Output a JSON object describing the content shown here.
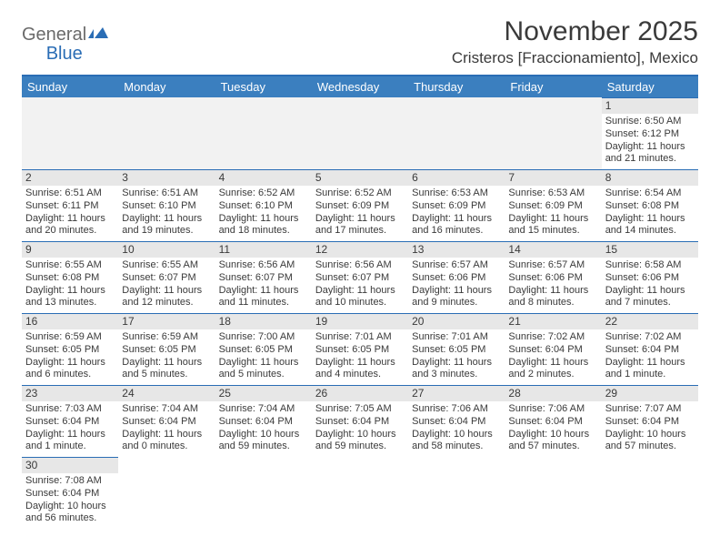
{
  "logo": {
    "word1": "General",
    "word2": "Blue"
  },
  "title": "November 2025",
  "location": "Cristeros [Fraccionamiento], Mexico",
  "colors": {
    "header_bg": "#3b7fbf",
    "header_border": "#2a6db5",
    "daynum_bg": "#e7e7e7",
    "text": "#3a3a3a"
  },
  "dow": [
    "Sunday",
    "Monday",
    "Tuesday",
    "Wednesday",
    "Thursday",
    "Friday",
    "Saturday"
  ],
  "weeks": [
    [
      null,
      null,
      null,
      null,
      null,
      null,
      {
        "n": "1",
        "sunrise": "Sunrise: 6:50 AM",
        "sunset": "Sunset: 6:12 PM",
        "daylight": "Daylight: 11 hours and 21 minutes."
      }
    ],
    [
      {
        "n": "2",
        "sunrise": "Sunrise: 6:51 AM",
        "sunset": "Sunset: 6:11 PM",
        "daylight": "Daylight: 11 hours and 20 minutes."
      },
      {
        "n": "3",
        "sunrise": "Sunrise: 6:51 AM",
        "sunset": "Sunset: 6:10 PM",
        "daylight": "Daylight: 11 hours and 19 minutes."
      },
      {
        "n": "4",
        "sunrise": "Sunrise: 6:52 AM",
        "sunset": "Sunset: 6:10 PM",
        "daylight": "Daylight: 11 hours and 18 minutes."
      },
      {
        "n": "5",
        "sunrise": "Sunrise: 6:52 AM",
        "sunset": "Sunset: 6:09 PM",
        "daylight": "Daylight: 11 hours and 17 minutes."
      },
      {
        "n": "6",
        "sunrise": "Sunrise: 6:53 AM",
        "sunset": "Sunset: 6:09 PM",
        "daylight": "Daylight: 11 hours and 16 minutes."
      },
      {
        "n": "7",
        "sunrise": "Sunrise: 6:53 AM",
        "sunset": "Sunset: 6:09 PM",
        "daylight": "Daylight: 11 hours and 15 minutes."
      },
      {
        "n": "8",
        "sunrise": "Sunrise: 6:54 AM",
        "sunset": "Sunset: 6:08 PM",
        "daylight": "Daylight: 11 hours and 14 minutes."
      }
    ],
    [
      {
        "n": "9",
        "sunrise": "Sunrise: 6:55 AM",
        "sunset": "Sunset: 6:08 PM",
        "daylight": "Daylight: 11 hours and 13 minutes."
      },
      {
        "n": "10",
        "sunrise": "Sunrise: 6:55 AM",
        "sunset": "Sunset: 6:07 PM",
        "daylight": "Daylight: 11 hours and 12 minutes."
      },
      {
        "n": "11",
        "sunrise": "Sunrise: 6:56 AM",
        "sunset": "Sunset: 6:07 PM",
        "daylight": "Daylight: 11 hours and 11 minutes."
      },
      {
        "n": "12",
        "sunrise": "Sunrise: 6:56 AM",
        "sunset": "Sunset: 6:07 PM",
        "daylight": "Daylight: 11 hours and 10 minutes."
      },
      {
        "n": "13",
        "sunrise": "Sunrise: 6:57 AM",
        "sunset": "Sunset: 6:06 PM",
        "daylight": "Daylight: 11 hours and 9 minutes."
      },
      {
        "n": "14",
        "sunrise": "Sunrise: 6:57 AM",
        "sunset": "Sunset: 6:06 PM",
        "daylight": "Daylight: 11 hours and 8 minutes."
      },
      {
        "n": "15",
        "sunrise": "Sunrise: 6:58 AM",
        "sunset": "Sunset: 6:06 PM",
        "daylight": "Daylight: 11 hours and 7 minutes."
      }
    ],
    [
      {
        "n": "16",
        "sunrise": "Sunrise: 6:59 AM",
        "sunset": "Sunset: 6:05 PM",
        "daylight": "Daylight: 11 hours and 6 minutes."
      },
      {
        "n": "17",
        "sunrise": "Sunrise: 6:59 AM",
        "sunset": "Sunset: 6:05 PM",
        "daylight": "Daylight: 11 hours and 5 minutes."
      },
      {
        "n": "18",
        "sunrise": "Sunrise: 7:00 AM",
        "sunset": "Sunset: 6:05 PM",
        "daylight": "Daylight: 11 hours and 5 minutes."
      },
      {
        "n": "19",
        "sunrise": "Sunrise: 7:01 AM",
        "sunset": "Sunset: 6:05 PM",
        "daylight": "Daylight: 11 hours and 4 minutes."
      },
      {
        "n": "20",
        "sunrise": "Sunrise: 7:01 AM",
        "sunset": "Sunset: 6:05 PM",
        "daylight": "Daylight: 11 hours and 3 minutes."
      },
      {
        "n": "21",
        "sunrise": "Sunrise: 7:02 AM",
        "sunset": "Sunset: 6:04 PM",
        "daylight": "Daylight: 11 hours and 2 minutes."
      },
      {
        "n": "22",
        "sunrise": "Sunrise: 7:02 AM",
        "sunset": "Sunset: 6:04 PM",
        "daylight": "Daylight: 11 hours and 1 minute."
      }
    ],
    [
      {
        "n": "23",
        "sunrise": "Sunrise: 7:03 AM",
        "sunset": "Sunset: 6:04 PM",
        "daylight": "Daylight: 11 hours and 1 minute."
      },
      {
        "n": "24",
        "sunrise": "Sunrise: 7:04 AM",
        "sunset": "Sunset: 6:04 PM",
        "daylight": "Daylight: 11 hours and 0 minutes."
      },
      {
        "n": "25",
        "sunrise": "Sunrise: 7:04 AM",
        "sunset": "Sunset: 6:04 PM",
        "daylight": "Daylight: 10 hours and 59 minutes."
      },
      {
        "n": "26",
        "sunrise": "Sunrise: 7:05 AM",
        "sunset": "Sunset: 6:04 PM",
        "daylight": "Daylight: 10 hours and 59 minutes."
      },
      {
        "n": "27",
        "sunrise": "Sunrise: 7:06 AM",
        "sunset": "Sunset: 6:04 PM",
        "daylight": "Daylight: 10 hours and 58 minutes."
      },
      {
        "n": "28",
        "sunrise": "Sunrise: 7:06 AM",
        "sunset": "Sunset: 6:04 PM",
        "daylight": "Daylight: 10 hours and 57 minutes."
      },
      {
        "n": "29",
        "sunrise": "Sunrise: 7:07 AM",
        "sunset": "Sunset: 6:04 PM",
        "daylight": "Daylight: 10 hours and 57 minutes."
      }
    ],
    [
      {
        "n": "30",
        "sunrise": "Sunrise: 7:08 AM",
        "sunset": "Sunset: 6:04 PM",
        "daylight": "Daylight: 10 hours and 56 minutes."
      },
      null,
      null,
      null,
      null,
      null,
      null
    ]
  ]
}
